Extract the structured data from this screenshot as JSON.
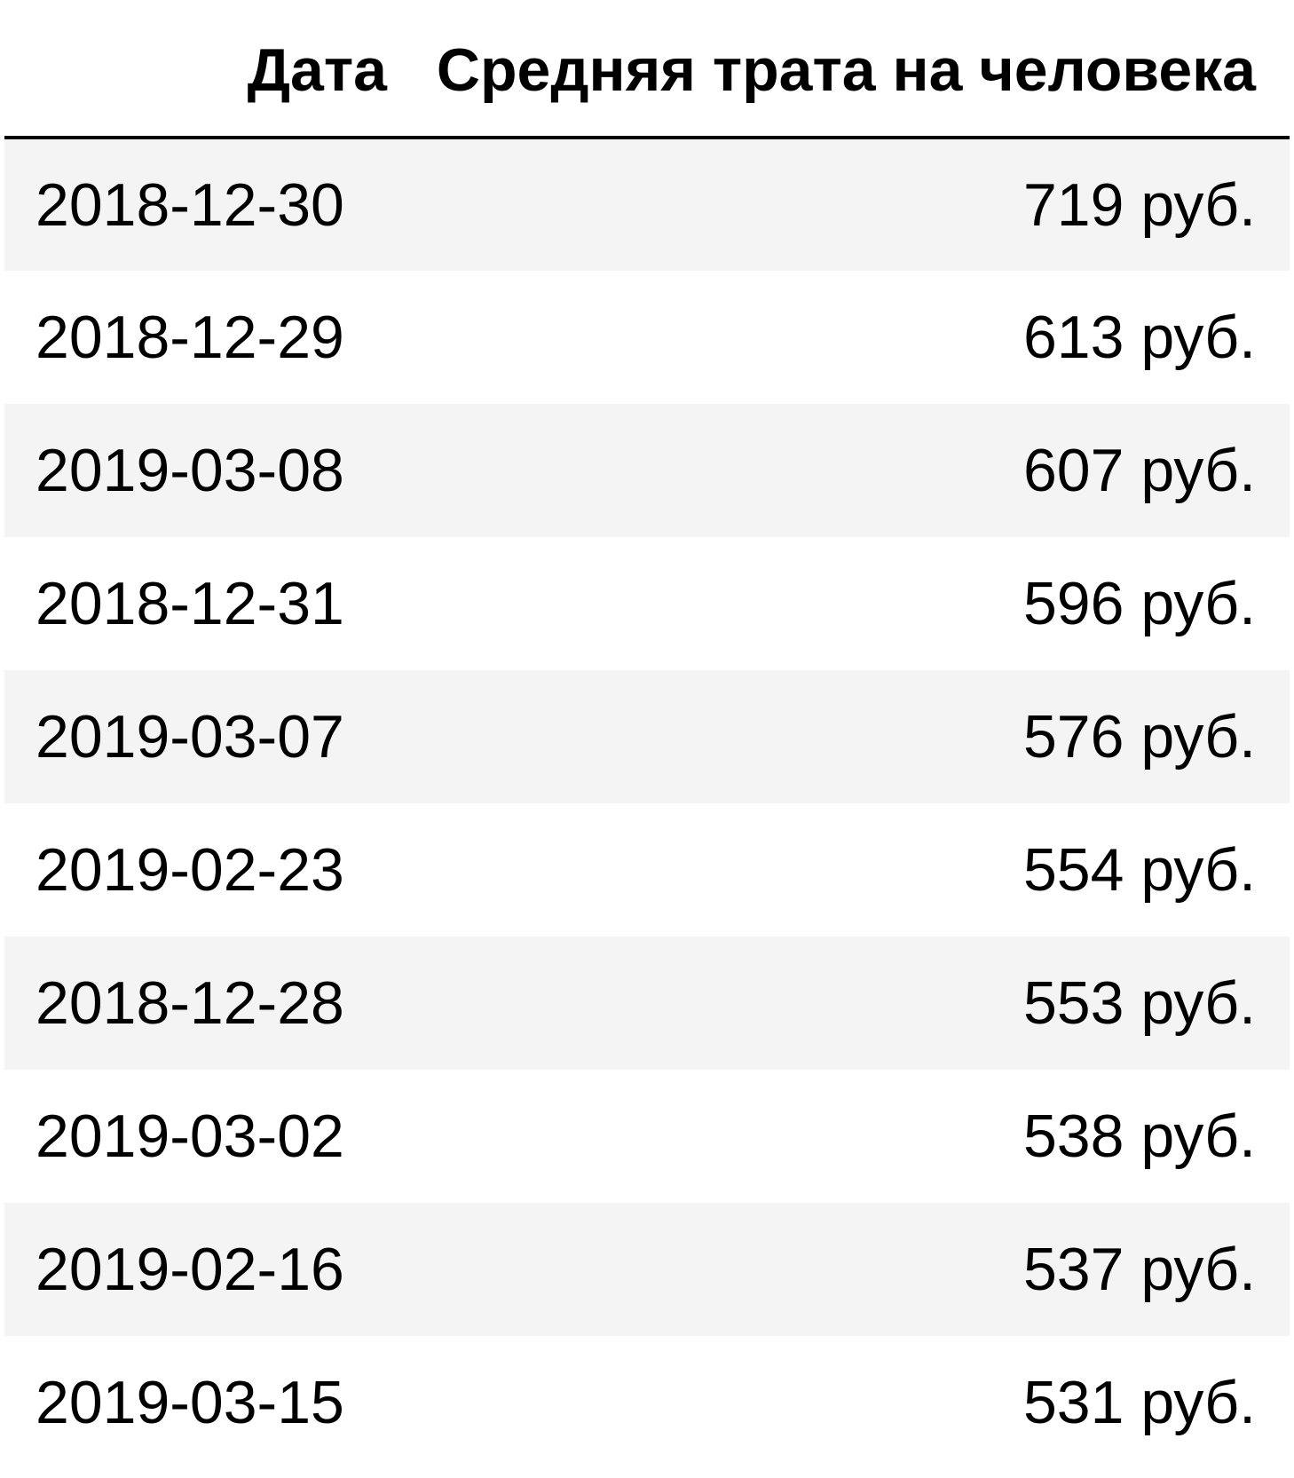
{
  "table": {
    "headers": {
      "date": "Дата",
      "avg_spend": "Средняя трата на человека"
    },
    "rows": [
      {
        "date": "2018-12-30",
        "avg_spend": "719 руб."
      },
      {
        "date": "2018-12-29",
        "avg_spend": "613 руб."
      },
      {
        "date": "2019-03-08",
        "avg_spend": "607 руб."
      },
      {
        "date": "2018-12-31",
        "avg_spend": "596 руб."
      },
      {
        "date": "2019-03-07",
        "avg_spend": "576 руб."
      },
      {
        "date": "2019-02-23",
        "avg_spend": "554 руб."
      },
      {
        "date": "2018-12-28",
        "avg_spend": "553 руб."
      },
      {
        "date": "2019-03-02",
        "avg_spend": "538 руб."
      },
      {
        "date": "2019-02-16",
        "avg_spend": "537 руб."
      },
      {
        "date": "2019-03-15",
        "avg_spend": "531 руб."
      }
    ],
    "colors": {
      "stripe": "#f4f4f4",
      "background": "#ffffff",
      "header_rule": "#000000"
    }
  }
}
